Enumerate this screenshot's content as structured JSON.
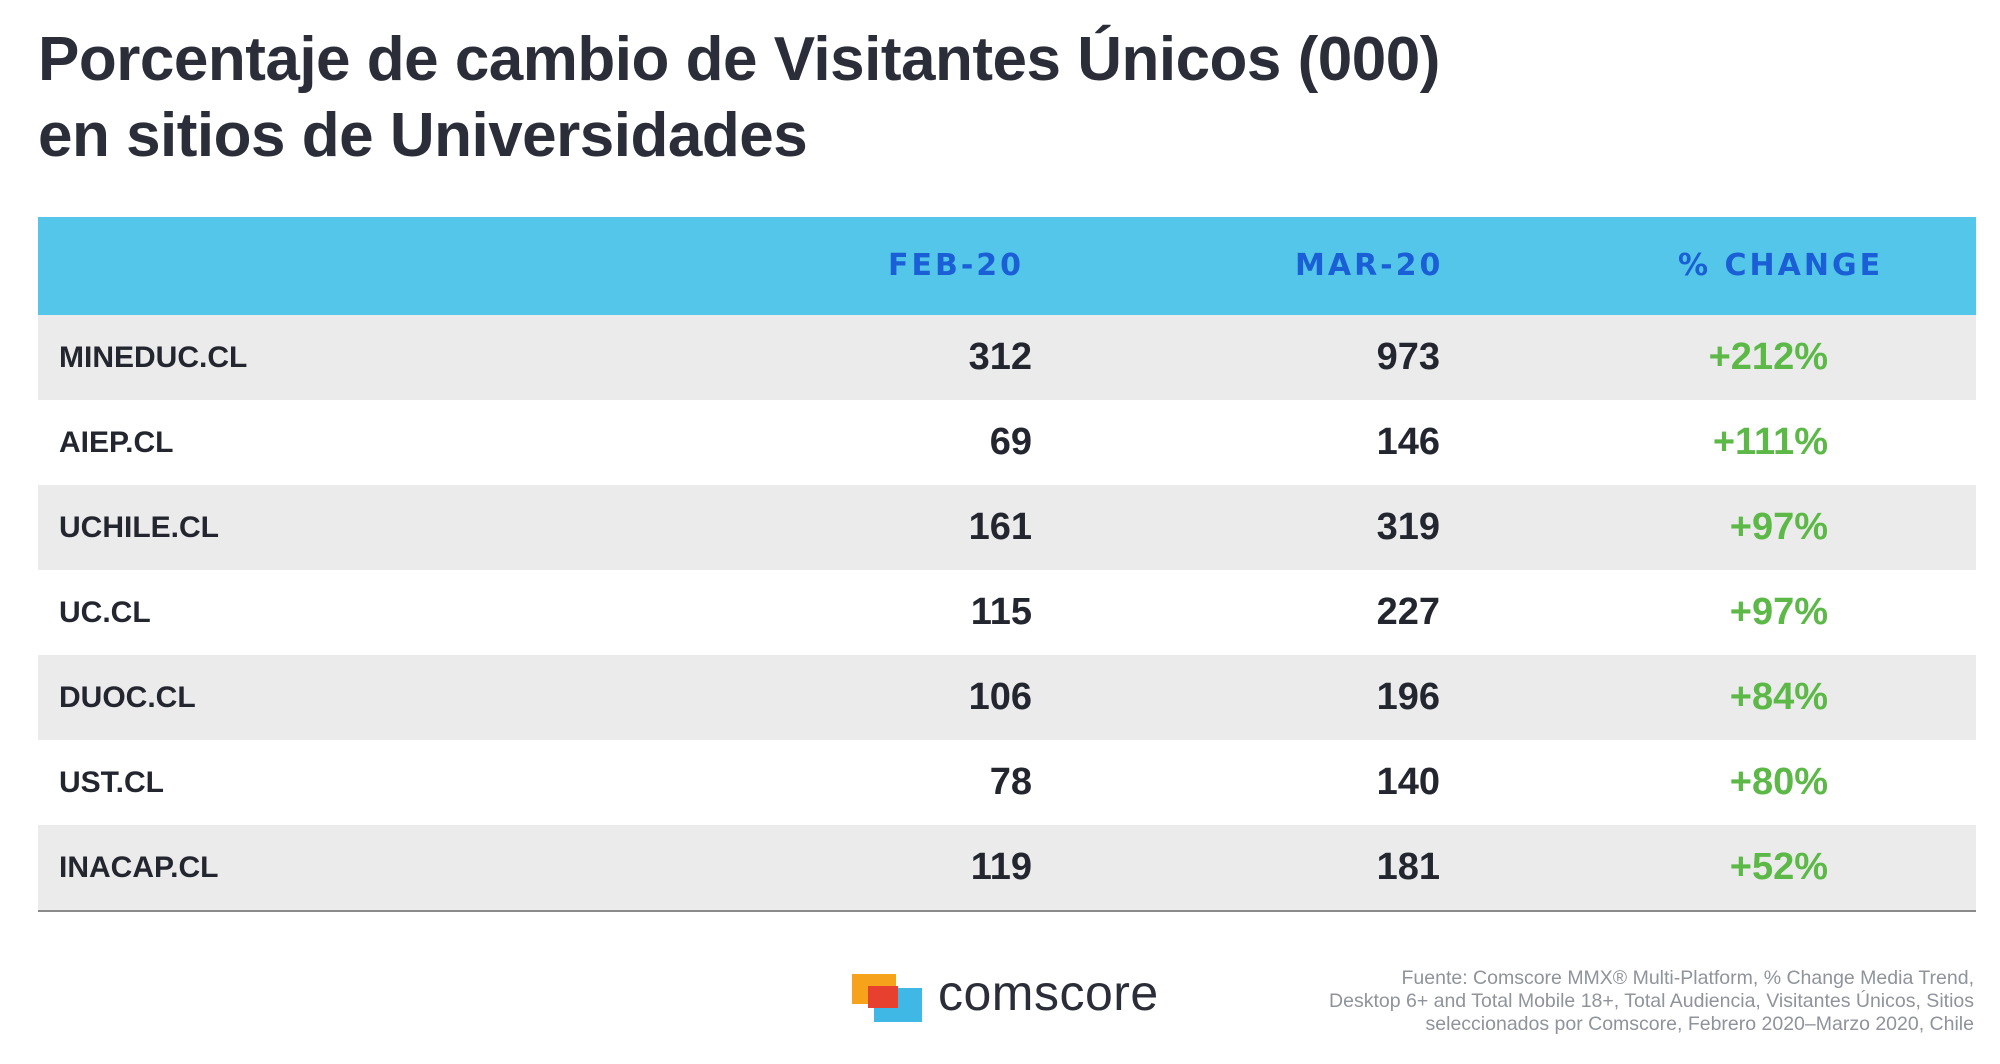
{
  "title_lines": [
    "Porcentaje de cambio de Visitantes Únicos (000)",
    "en sitios de Universidades"
  ],
  "headers": {
    "site": "",
    "feb": "FEB-20",
    "mar": "MAR-20",
    "change": "% CHANGE"
  },
  "rows": [
    {
      "site": "MINEDUC.CL",
      "feb": "312",
      "mar": "973",
      "change": "+212%"
    },
    {
      "site": "AIEP.CL",
      "feb": "69",
      "mar": "146",
      "change": "+111%"
    },
    {
      "site": "UCHILE.CL",
      "feb": "161",
      "mar": "319",
      "change": "+97%"
    },
    {
      "site": "UC.CL",
      "feb": "115",
      "mar": "227",
      "change": "+97%"
    },
    {
      "site": "DUOC.CL",
      "feb": "106",
      "mar": "196",
      "change": "+84%"
    },
    {
      "site": "UST.CL",
      "feb": "78",
      "mar": "140",
      "change": "+80%"
    },
    {
      "site": "INACAP.CL",
      "feb": "119",
      "mar": "181",
      "change": "+52%"
    }
  ],
  "brand": "comscore",
  "source_lines": [
    "Fuente: Comscore MMX® Multi-Platform, % Change Media Trend,",
    "Desktop 6+ and Total Mobile 18+, Total Audiencia, Visitantes Únicos, Sitios",
    "seleccionados por Comscore, Febrero 2020–Marzo 2020, Chile"
  ],
  "colors": {
    "header_bg": "#54c6e9",
    "header_text": "#1a5fd6",
    "change_text": "#5cb947",
    "row_alt": "#ebebeb",
    "logo_orange": "#f6a31b",
    "logo_red": "#e8402f",
    "logo_blue": "#3fb8e6"
  },
  "chart_data": {
    "type": "table",
    "title": "Porcentaje de cambio de Visitantes Únicos (000) en sitios de Universidades",
    "columns": [
      "",
      "FEB-20",
      "MAR-20",
      "% CHANGE"
    ],
    "rows": [
      [
        "MINEDUC.CL",
        312,
        973,
        "+212%"
      ],
      [
        "AIEP.CL",
        69,
        146,
        "+111%"
      ],
      [
        "UCHILE.CL",
        161,
        319,
        "+97%"
      ],
      [
        "UC.CL",
        115,
        227,
        "+97%"
      ],
      [
        "DUOC.CL",
        106,
        196,
        "+84%"
      ],
      [
        "UST.CL",
        78,
        140,
        "+80%"
      ],
      [
        "INACAP.CL",
        119,
        181,
        "+52%"
      ]
    ]
  }
}
